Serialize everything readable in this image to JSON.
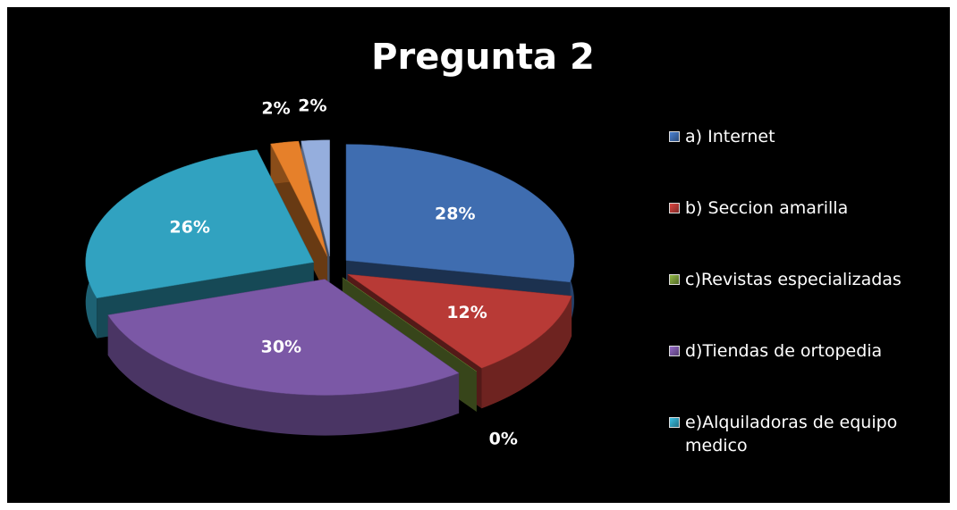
{
  "chart_data": {
    "type": "pie",
    "title": "Pregunta 2",
    "categories": [
      "a) Internet",
      "b) Seccion amarilla",
      "c)Revistas especializadas",
      "d)Tiendas de ortopedia",
      "e)Alquiladoras de equipo medico",
      null,
      null
    ],
    "values": [
      28,
      12,
      0,
      30,
      26,
      2,
      2
    ],
    "value_labels": [
      "28%",
      "12%",
      "0%",
      "30%",
      "26%",
      "2%",
      "2%"
    ],
    "colors": [
      "#3f6db0",
      "#b83a36",
      "#7a9a3a",
      "#7b58a6",
      "#31a2c0",
      "#e6802a",
      "#95aedd"
    ],
    "legend": "right"
  }
}
